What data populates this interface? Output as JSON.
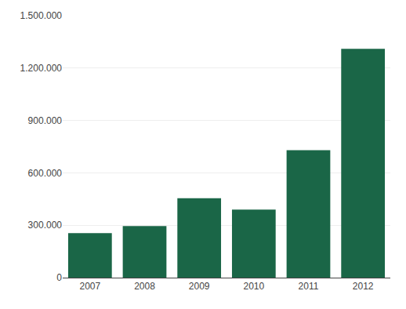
{
  "chart_data": {
    "type": "bar",
    "categories": [
      "2007",
      "2008",
      "2009",
      "2010",
      "2011",
      "2012"
    ],
    "values": [
      255000,
      295000,
      455000,
      390000,
      730000,
      1310000
    ],
    "color": "#1a6647",
    "ylim": [
      0,
      1500000
    ],
    "yticks": [
      0,
      {
        "value": 300000,
        "label": "300.000"
      },
      {
        "value": 600000,
        "label": "600.000"
      },
      {
        "value": 900000,
        "label": "900.000"
      },
      {
        "value": 1200000,
        "label": "1.200.000"
      },
      {
        "value": 1500000,
        "label": "1.500.000"
      }
    ],
    "grid": true
  }
}
